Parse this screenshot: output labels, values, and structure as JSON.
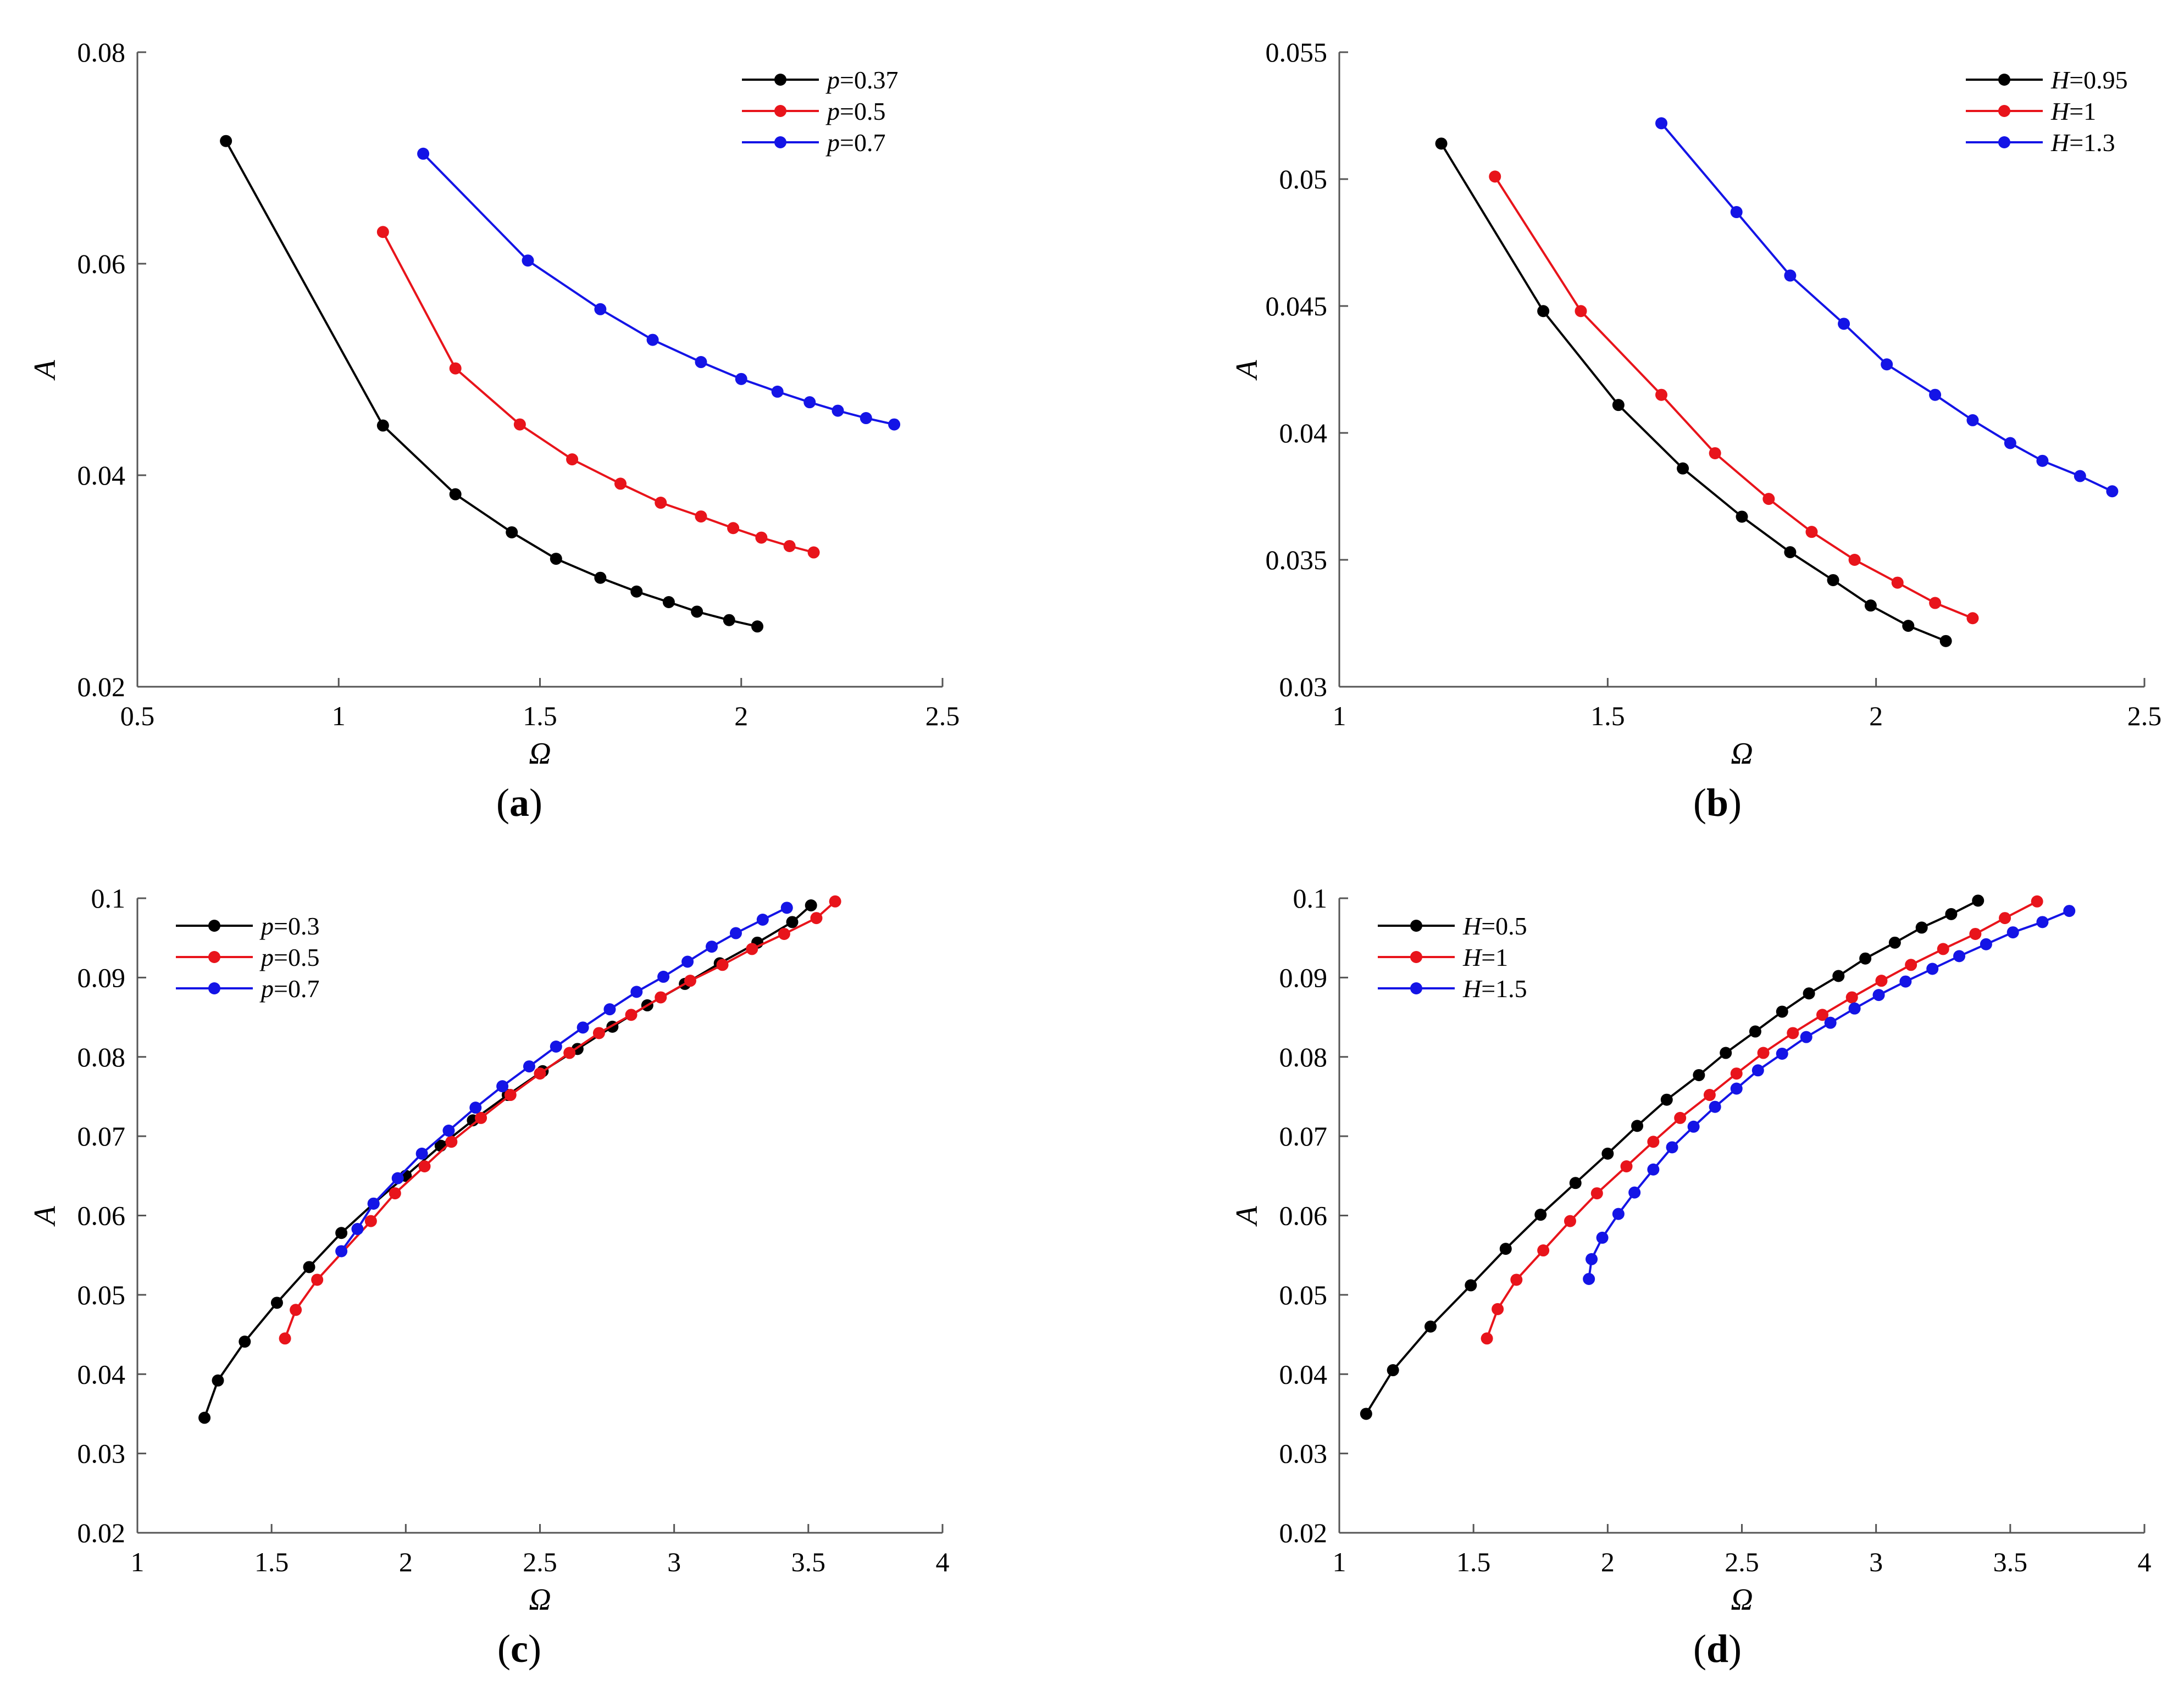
{
  "figure": {
    "colors": {
      "black": "#000000",
      "red": "#e8141b",
      "blue": "#1414e6",
      "axis": "#555555"
    }
  },
  "chart_data": [
    {
      "id": "a",
      "type": "line",
      "caption_letter": "a",
      "xlabel": "Ω",
      "ylabel": "A",
      "xlim": [
        0.5,
        2.5
      ],
      "ylim": [
        0.02,
        0.08
      ],
      "xticks": [
        0.5,
        1,
        1.5,
        2,
        2.5
      ],
      "xtick_labels": [
        "0.5",
        "1",
        "1.5",
        "2",
        "2.5"
      ],
      "yticks": [
        0.02,
        0.04,
        0.06,
        0.08
      ],
      "ytick_labels": [
        "0.02",
        "0.04",
        "0.06",
        "0.08"
      ],
      "legend": {
        "position": "top-right",
        "var": "p"
      },
      "series": [
        {
          "name": "p=0.37",
          "var": "p",
          "val": "=0.37",
          "color": "#000000",
          "x": [
            0.72,
            1.11,
            1.29,
            1.43,
            1.54,
            1.65,
            1.74,
            1.82,
            1.89,
            1.97,
            2.04
          ],
          "y": [
            0.0716,
            0.0447,
            0.0382,
            0.0346,
            0.0321,
            0.0303,
            0.029,
            0.028,
            0.0271,
            0.0263,
            0.0257
          ]
        },
        {
          "name": "p=0.5",
          "var": "p",
          "val": "=0.5",
          "color": "#e8141b",
          "x": [
            1.11,
            1.29,
            1.45,
            1.58,
            1.7,
            1.8,
            1.9,
            1.98,
            2.05,
            2.12,
            2.18
          ],
          "y": [
            0.063,
            0.0501,
            0.0448,
            0.0415,
            0.0392,
            0.0374,
            0.0361,
            0.035,
            0.0341,
            0.0333,
            0.0327
          ]
        },
        {
          "name": "p=0.7",
          "var": "p",
          "val": "=0.7",
          "color": "#1414e6",
          "x": [
            1.21,
            1.47,
            1.65,
            1.78,
            1.9,
            2.0,
            2.09,
            2.17,
            2.24,
            2.31,
            2.38
          ],
          "y": [
            0.0704,
            0.0603,
            0.0557,
            0.0528,
            0.0507,
            0.0491,
            0.0479,
            0.0469,
            0.0461,
            0.0454,
            0.0448
          ]
        }
      ]
    },
    {
      "id": "b",
      "type": "line",
      "caption_letter": "b",
      "xlabel": "Ω",
      "ylabel": "A",
      "xlim": [
        1,
        2.5
      ],
      "ylim": [
        0.03,
        0.055
      ],
      "xticks": [
        1,
        1.5,
        2,
        2.5
      ],
      "xtick_labels": [
        "1",
        "1.5",
        "2",
        "2.5"
      ],
      "yticks": [
        0.03,
        0.035,
        0.04,
        0.045,
        0.05,
        0.055
      ],
      "ytick_labels": [
        "0.03",
        "0.035",
        "0.04",
        "0.045",
        "0.05",
        "0.055"
      ],
      "legend": {
        "position": "top-right",
        "var": "H"
      },
      "series": [
        {
          "name": "H=0.95",
          "var": "H",
          "val": "=0.95",
          "color": "#000000",
          "x": [
            1.19,
            1.38,
            1.52,
            1.64,
            1.75,
            1.84,
            1.92,
            1.99,
            2.06,
            2.13
          ],
          "y": [
            0.0514,
            0.0448,
            0.0411,
            0.0386,
            0.0367,
            0.0353,
            0.0342,
            0.0332,
            0.0324,
            0.0318
          ]
        },
        {
          "name": "H=1",
          "var": "H",
          "val": "=1",
          "color": "#e8141b",
          "x": [
            1.29,
            1.45,
            1.6,
            1.7,
            1.8,
            1.88,
            1.96,
            2.04,
            2.11,
            2.18
          ],
          "y": [
            0.0501,
            0.0448,
            0.0415,
            0.0392,
            0.0374,
            0.0361,
            0.035,
            0.0341,
            0.0333,
            0.0327
          ]
        },
        {
          "name": "H=1.3",
          "var": "H",
          "val": "=1.3",
          "color": "#1414e6",
          "x": [
            1.6,
            1.74,
            1.84,
            1.94,
            2.02,
            2.11,
            2.18,
            2.25,
            2.31,
            2.38,
            2.44
          ],
          "y": [
            0.0522,
            0.0487,
            0.0462,
            0.0443,
            0.0427,
            0.0415,
            0.0405,
            0.0396,
            0.0389,
            0.0383,
            0.0377
          ]
        }
      ]
    },
    {
      "id": "c",
      "type": "line",
      "caption_letter": "c",
      "xlabel": "Ω",
      "ylabel": "A",
      "xlim": [
        1,
        4
      ],
      "ylim": [
        0.02,
        0.1
      ],
      "xticks": [
        1,
        1.5,
        2,
        2.5,
        3,
        3.5,
        4
      ],
      "xtick_labels": [
        "1",
        "1.5",
        "2",
        "2.5",
        "3",
        "3.5",
        "4"
      ],
      "yticks": [
        0.02,
        0.03,
        0.04,
        0.05,
        0.06,
        0.07,
        0.08,
        0.09,
        0.1
      ],
      "ytick_labels": [
        "0.02",
        "0.03",
        "0.04",
        "0.05",
        "0.06",
        "0.07",
        "0.08",
        "0.09",
        "0.1"
      ],
      "legend": {
        "position": "top-left",
        "var": "p"
      },
      "series": [
        {
          "name": "p=0.3",
          "var": "p",
          "val": "=0.3",
          "color": "#000000",
          "x": [
            1.25,
            1.3,
            1.4,
            1.52,
            1.64,
            1.76,
            1.88,
            2.0,
            2.13,
            2.25,
            2.38,
            2.51,
            2.64,
            2.77,
            2.9,
            3.04,
            3.17,
            3.31,
            3.44,
            3.51
          ],
          "y": [
            0.0345,
            0.0392,
            0.0441,
            0.049,
            0.0535,
            0.0578,
            0.0615,
            0.065,
            0.0688,
            0.072,
            0.0752,
            0.0782,
            0.081,
            0.0838,
            0.0865,
            0.0892,
            0.0918,
            0.0944,
            0.097,
            0.0991
          ]
        },
        {
          "name": "p=0.5",
          "var": "p",
          "val": "=0.5",
          "color": "#e8141b",
          "x": [
            1.55,
            1.59,
            1.67,
            1.87,
            1.96,
            2.07,
            2.17,
            2.28,
            2.39,
            2.5,
            2.61,
            2.72,
            2.84,
            2.95,
            3.06,
            3.18,
            3.29,
            3.41,
            3.53,
            3.6
          ],
          "y": [
            0.0445,
            0.0481,
            0.0519,
            0.0593,
            0.0628,
            0.0662,
            0.0693,
            0.0723,
            0.0752,
            0.0779,
            0.0805,
            0.083,
            0.0853,
            0.0875,
            0.0896,
            0.0916,
            0.0936,
            0.0955,
            0.0975,
            0.0996
          ]
        },
        {
          "name": "p=0.7",
          "var": "p",
          "val": "=0.7",
          "color": "#1414e6",
          "x": [
            1.76,
            1.82,
            1.88,
            1.97,
            2.06,
            2.16,
            2.26,
            2.36,
            2.46,
            2.56,
            2.66,
            2.76,
            2.86,
            2.96,
            3.05,
            3.14,
            3.23,
            3.33,
            3.42
          ],
          "y": [
            0.0555,
            0.0583,
            0.0615,
            0.0647,
            0.0678,
            0.0707,
            0.0736,
            0.0763,
            0.0788,
            0.0813,
            0.0837,
            0.086,
            0.0882,
            0.0901,
            0.092,
            0.0939,
            0.0956,
            0.0973,
            0.0988
          ]
        }
      ]
    },
    {
      "id": "d",
      "type": "line",
      "caption_letter": "d",
      "xlabel": "Ω",
      "ylabel": "A",
      "xlim": [
        1,
        4
      ],
      "ylim": [
        0.02,
        0.1
      ],
      "xticks": [
        1,
        1.5,
        2,
        2.5,
        3,
        3.5,
        4
      ],
      "xtick_labels": [
        "1",
        "1.5",
        "2",
        "2.5",
        "3",
        "3.5",
        "4"
      ],
      "yticks": [
        0.02,
        0.03,
        0.04,
        0.05,
        0.06,
        0.07,
        0.08,
        0.09,
        0.1
      ],
      "ytick_labels": [
        "0.02",
        "0.03",
        "0.04",
        "0.05",
        "0.06",
        "0.07",
        "0.08",
        "0.09",
        "0.1"
      ],
      "legend": {
        "position": "top-left",
        "var": "H"
      },
      "series": [
        {
          "name": "H=0.5",
          "var": "H",
          "val": "=0.5",
          "color": "#000000",
          "x": [
            1.1,
            1.2,
            1.34,
            1.49,
            1.62,
            1.75,
            1.88,
            2.0,
            2.11,
            2.22,
            2.34,
            2.44,
            2.55,
            2.65,
            2.75,
            2.86,
            2.96,
            3.07,
            3.17,
            3.28,
            3.38
          ],
          "y": [
            0.035,
            0.0405,
            0.046,
            0.0512,
            0.0558,
            0.0601,
            0.0641,
            0.0678,
            0.0713,
            0.0746,
            0.0777,
            0.0805,
            0.0832,
            0.0857,
            0.088,
            0.0902,
            0.0924,
            0.0944,
            0.0963,
            0.098,
            0.0997
          ]
        },
        {
          "name": "H=1",
          "var": "H",
          "val": "=1",
          "color": "#e8141b",
          "x": [
            1.55,
            1.59,
            1.66,
            1.76,
            1.86,
            1.96,
            2.07,
            2.17,
            2.27,
            2.38,
            2.48,
            2.58,
            2.69,
            2.8,
            2.91,
            3.02,
            3.13,
            3.25,
            3.37,
            3.48,
            3.6
          ],
          "y": [
            0.0445,
            0.0482,
            0.0519,
            0.0556,
            0.0593,
            0.0628,
            0.0662,
            0.0693,
            0.0723,
            0.0752,
            0.0779,
            0.0805,
            0.083,
            0.0853,
            0.0875,
            0.0896,
            0.0916,
            0.0936,
            0.0955,
            0.0975,
            0.0996
          ]
        },
        {
          "name": "H=1.5",
          "var": "H",
          "val": "=1.5",
          "color": "#1414e6",
          "x": [
            1.93,
            1.94,
            1.98,
            2.04,
            2.1,
            2.17,
            2.24,
            2.32,
            2.4,
            2.48,
            2.56,
            2.65,
            2.74,
            2.83,
            2.92,
            3.01,
            3.11,
            3.21,
            3.31,
            3.41,
            3.51,
            3.62,
            3.72
          ],
          "y": [
            0.052,
            0.0545,
            0.0572,
            0.0602,
            0.0629,
            0.0658,
            0.0686,
            0.0712,
            0.0737,
            0.076,
            0.0783,
            0.0804,
            0.0825,
            0.0843,
            0.0861,
            0.0878,
            0.0895,
            0.0911,
            0.0927,
            0.0942,
            0.0957,
            0.097,
            0.0984
          ]
        }
      ]
    }
  ]
}
